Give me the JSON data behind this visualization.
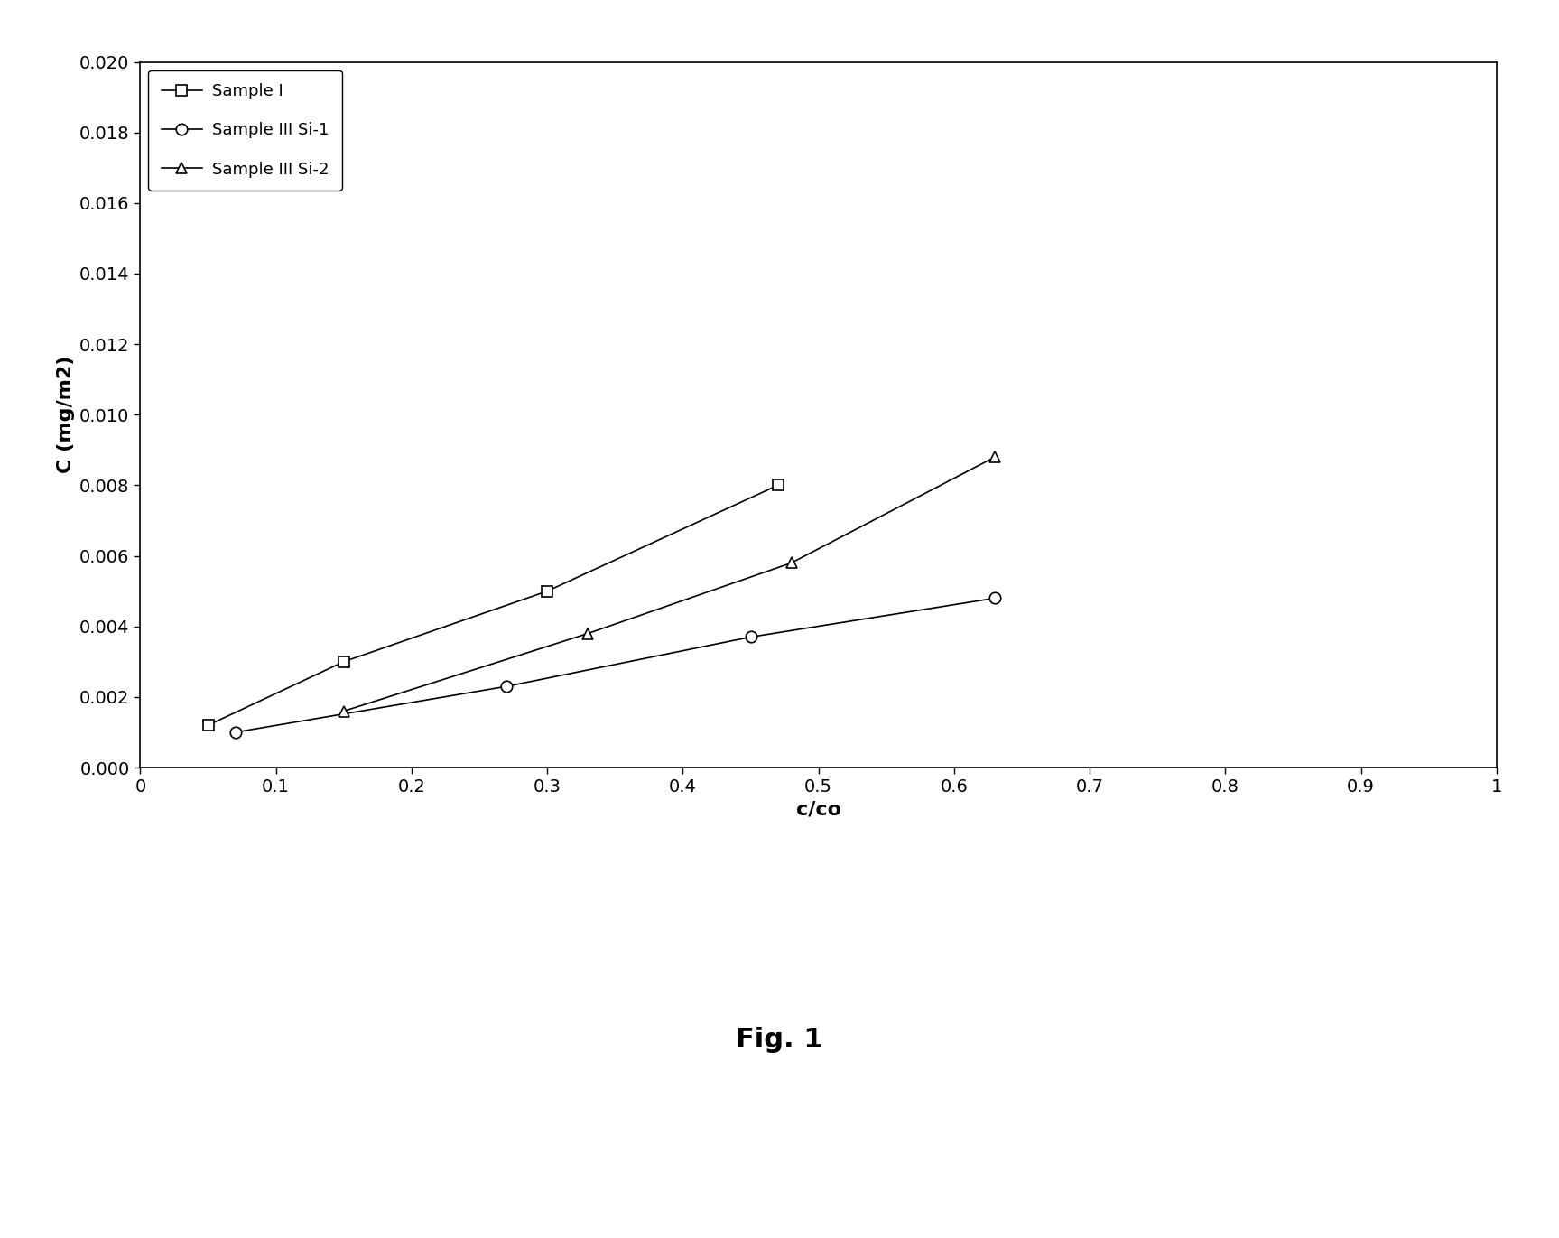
{
  "series": [
    {
      "label": "Sample I",
      "x": [
        0.05,
        0.15,
        0.3,
        0.47
      ],
      "y": [
        0.0012,
        0.003,
        0.005,
        0.008
      ],
      "marker": "s",
      "color": "#000000",
      "linestyle": "-"
    },
    {
      "label": "Sample III Si-1",
      "x": [
        0.07,
        0.27,
        0.45,
        0.63
      ],
      "y": [
        0.001,
        0.0023,
        0.0037,
        0.0048
      ],
      "marker": "o",
      "color": "#000000",
      "linestyle": "-"
    },
    {
      "label": "Sample III Si-2",
      "x": [
        0.15,
        0.33,
        0.48,
        0.63
      ],
      "y": [
        0.0016,
        0.0038,
        0.0058,
        0.0088
      ],
      "marker": "^",
      "color": "#000000",
      "linestyle": "-"
    }
  ],
  "xlabel": "c/co",
  "ylabel": "C (mg/m2)",
  "xlim": [
    0,
    1.0
  ],
  "ylim": [
    0.0,
    0.02
  ],
  "xticks": [
    0,
    0.1,
    0.2,
    0.3,
    0.4,
    0.5,
    0.6,
    0.7,
    0.8,
    0.9,
    1.0
  ],
  "yticks": [
    0.0,
    0.002,
    0.004,
    0.006,
    0.008,
    0.01,
    0.012,
    0.014,
    0.016,
    0.018,
    0.02
  ],
  "caption": "Fig. 1",
  "background_color": "#ffffff",
  "legend_loc": "upper left",
  "marker_size": 9,
  "linewidth": 1.2,
  "label_fontsize": 16,
  "tick_fontsize": 14,
  "legend_fontsize": 13,
  "caption_fontsize": 22
}
